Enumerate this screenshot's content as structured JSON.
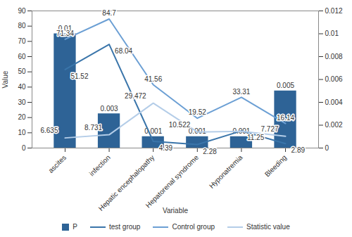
{
  "chart_data": {
    "type": "bar",
    "x_label": "Variable",
    "y_label": "Value",
    "categories": [
      "ascites",
      "infection",
      "Hepatic encephalopathy",
      "Hepatorenal syndrome",
      "Hyponatremia",
      "Bleeding"
    ],
    "ylim": [
      0,
      90
    ],
    "yticks": [
      0,
      10,
      20,
      30,
      40,
      50,
      60,
      70,
      80,
      90
    ],
    "y2lim": [
      0,
      0.012
    ],
    "y2ticks": [
      0,
      0.002,
      0.004,
      0.006,
      0.008,
      0.01,
      0.012
    ],
    "grid": false,
    "legend": "bottom",
    "data_labels": true,
    "series": [
      {
        "name": "P",
        "type": "bar",
        "axis": "y2",
        "color": "#2e6396",
        "values": [
          0.01,
          0.003,
          0.001,
          0.001,
          0.001,
          0.005
        ]
      },
      {
        "name": "test group",
        "type": "line",
        "color": "#3a75aa",
        "values": [
          51.52,
          68.04,
          4.39,
          2.28,
          11.25,
          2.89
        ]
      },
      {
        "name": "Control group",
        "type": "line",
        "color": "#6b9fd4",
        "values": [
          71.34,
          84.7,
          41.56,
          19.52,
          33.31,
          16.14
        ]
      },
      {
        "name": "Statistic value",
        "type": "line",
        "color": "#b4cde8",
        "values": [
          6.635,
          8.731,
          29.472,
          10.522,
          11.0,
          7.727
        ],
        "value_labels": [
          "6.635",
          "8.731",
          "29.472",
          "10.522",
          null,
          "7.727"
        ]
      }
    ]
  }
}
